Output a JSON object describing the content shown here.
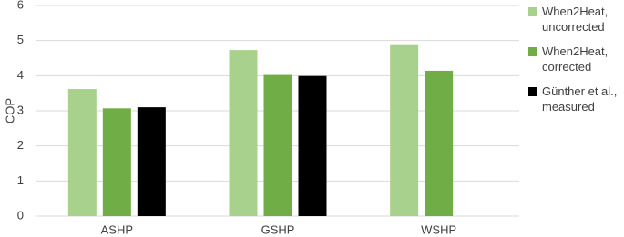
{
  "chart_data": {
    "type": "bar",
    "ylabel": "COP",
    "categories": [
      "ASHP",
      "GSHP",
      "WSHP"
    ],
    "series": [
      {
        "name": "When2Heat, uncorrected",
        "color": "#a9d18e",
        "values": [
          3.62,
          4.73,
          4.87
        ]
      },
      {
        "name": "When2Heat, corrected",
        "color": "#70ad47",
        "values": [
          3.07,
          4.02,
          4.14
        ]
      },
      {
        "name": "Günther et al., measured",
        "color": "#000000",
        "values": [
          3.1,
          3.99,
          null
        ]
      }
    ],
    "ylim": [
      0,
      6
    ],
    "yticks": [
      0,
      1,
      2,
      3,
      4,
      5,
      6
    ],
    "grid": true,
    "legend": "right"
  }
}
